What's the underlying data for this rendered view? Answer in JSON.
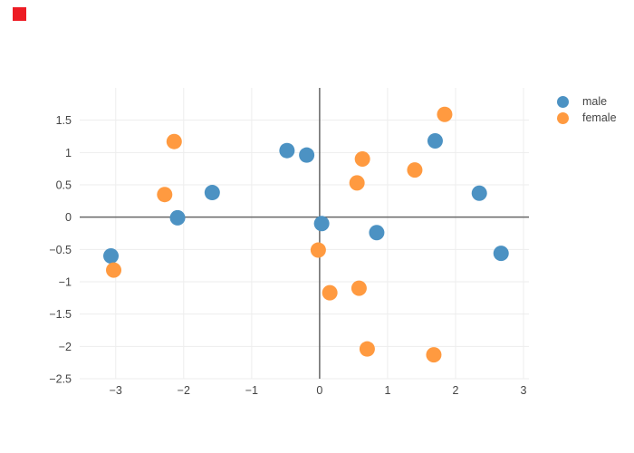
{
  "overlay_marker": {
    "color": "#ed1c24"
  },
  "legend": {
    "items": [
      {
        "label": "male",
        "color": "#4c92c3"
      },
      {
        "label": "female",
        "color": "#ff9a40"
      }
    ]
  },
  "colors": {
    "background": "#ffffff",
    "gridline": "#ededed",
    "zeroline": "#666666",
    "tick_text": "#444444",
    "male": "#4c92c3",
    "female": "#ff9a40"
  },
  "chart_data": {
    "type": "scatter",
    "title": "",
    "xlabel": "",
    "ylabel": "",
    "grid": true,
    "zerolines": true,
    "legend_position": "top-right",
    "xlim": [
      -3.53,
      3.08
    ],
    "ylim": [
      -2.5,
      2.0
    ],
    "xticks": {
      "values": [
        -3,
        -2,
        -1,
        0,
        1,
        2,
        3
      ],
      "labels": [
        "−3",
        "−2",
        "−1",
        "0",
        "1",
        "2",
        "3"
      ]
    },
    "yticks": {
      "values": [
        -2.5,
        -2,
        -1.5,
        -1,
        -0.5,
        0,
        0.5,
        1,
        1.5
      ],
      "labels": [
        "−2.5",
        "−2",
        "−1.5",
        "−1",
        "−0.5",
        "0",
        "0.5",
        "1",
        "1.5"
      ]
    },
    "series": [
      {
        "name": "male",
        "color": "#4c92c3",
        "marker_size": 17,
        "points": [
          [
            -3.07,
            -0.6
          ],
          [
            -2.09,
            -0.01
          ],
          [
            -1.58,
            0.38
          ],
          [
            -0.48,
            1.03
          ],
          [
            -0.19,
            0.96
          ],
          [
            0.03,
            -0.1
          ],
          [
            0.84,
            -0.24
          ],
          [
            1.7,
            1.18
          ],
          [
            2.35,
            0.37
          ],
          [
            2.67,
            -0.56
          ]
        ]
      },
      {
        "name": "female",
        "color": "#ff9a40",
        "marker_size": 17,
        "points": [
          [
            -3.03,
            -0.82
          ],
          [
            -2.28,
            0.35
          ],
          [
            -2.14,
            1.17
          ],
          [
            -0.02,
            -0.51
          ],
          [
            0.15,
            -1.17
          ],
          [
            0.55,
            0.53
          ],
          [
            0.58,
            -1.1
          ],
          [
            0.63,
            0.9
          ],
          [
            0.7,
            -2.04
          ],
          [
            1.4,
            0.73
          ],
          [
            1.68,
            -2.13
          ],
          [
            1.84,
            1.59
          ]
        ]
      }
    ]
  }
}
